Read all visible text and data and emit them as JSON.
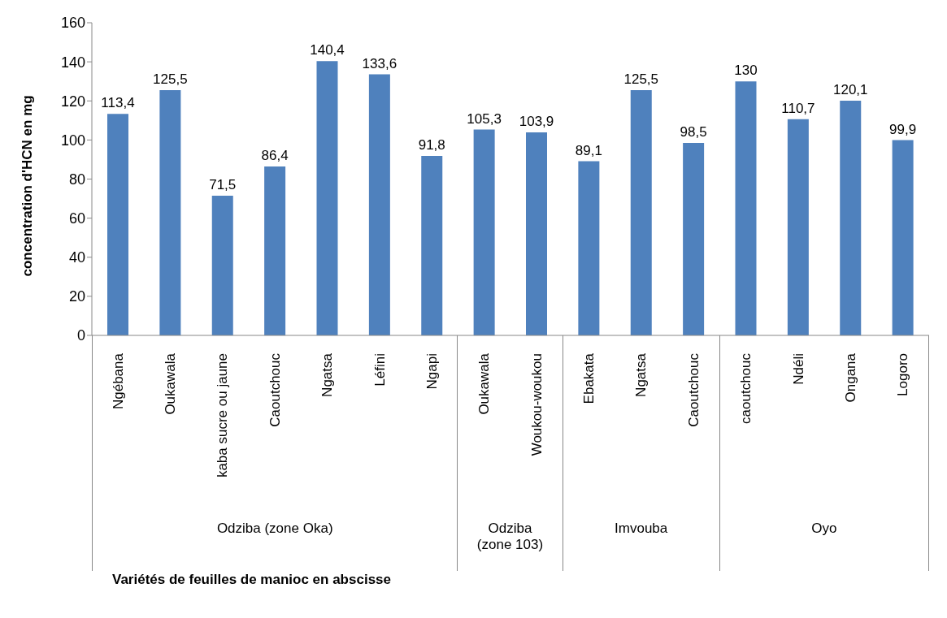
{
  "chart_data": {
    "type": "bar",
    "ylabel": "concentration d'HCN en mg",
    "categories": [
      "Ngébana",
      "Oukawala",
      "kaba sucre ou jaune",
      "Caoutchouc",
      "Ngatsa",
      "Léfini",
      "Ngapi",
      "Oukawala",
      "Woukou-woukou",
      "Ebakata",
      "Ngatsa",
      "Caoutchouc",
      "caoutchouc",
      "Ndéli",
      "Ongana",
      "Logoro"
    ],
    "values": [
      113.4,
      125.5,
      71.5,
      86.4,
      140.4,
      133.6,
      91.8,
      105.3,
      103.9,
      89.1,
      125.5,
      98.5,
      130,
      110.7,
      120.1,
      99.9
    ],
    "value_labels": [
      "113,4",
      "125,5",
      "71,5",
      "86,4",
      "140,4",
      "133,6",
      "91,8",
      "105,3",
      "103,9",
      "89,1",
      "125,5",
      "98,5",
      "130",
      "110,7",
      "120,1",
      "99,9"
    ],
    "color": "#4f81bd",
    "annotations": [
      "Odziba (zone Oka)",
      "Odziba (zone 103)",
      "Imvouba",
      "Oyo",
      "Variétés de feuilles de manioc en abscisse"
    ],
    "ylim": [
      0,
      160
    ],
    "yticks": [
      0,
      20,
      40,
      60,
      80,
      100,
      120,
      140,
      160
    ],
    "grid": false
  }
}
